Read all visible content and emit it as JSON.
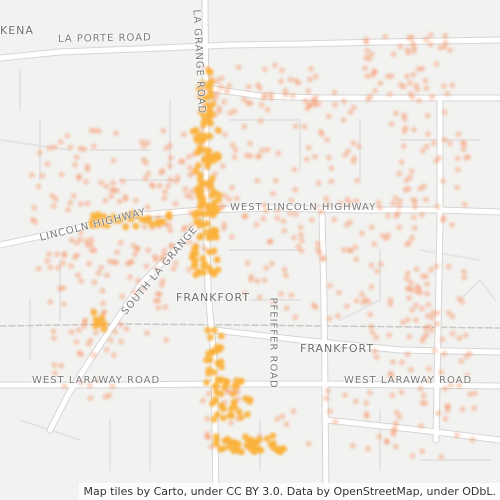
{
  "map": {
    "colors": {
      "background": "#f2f2f0",
      "major_road": "#ffffff",
      "road_casing": "#d6d6d6",
      "minor_road": "#e4e4e4",
      "rail": "#c8c8c8",
      "water": "#d4dadc",
      "point_low": "#f79a6f",
      "point_high": "#fbb13c"
    },
    "labels": {
      "kena": "KENA",
      "la_porte_road": "LA PORTE ROAD",
      "la_grange_road_north": "LA GRANGE ROAD",
      "lincoln_highway": "LINCOLN HIGHWAY",
      "west_lincoln_highway": "WEST LINCOLN HIGHWAY",
      "south_la_grange": "SOUTH LA GRANGE",
      "frankfort_center": "FRANKFORT",
      "frankfort_east": "FRANKFORT",
      "pfeiffer_road": "PFEIFFER ROAD",
      "west_laraway_road_left": "WEST LARAWAY ROAD",
      "west_laraway_road_right": "WEST LARAWAY ROAD"
    },
    "attribution": "Map tiles by Carto, under CC BY 3.0. Data by OpenStreetMap, under ODbL."
  }
}
